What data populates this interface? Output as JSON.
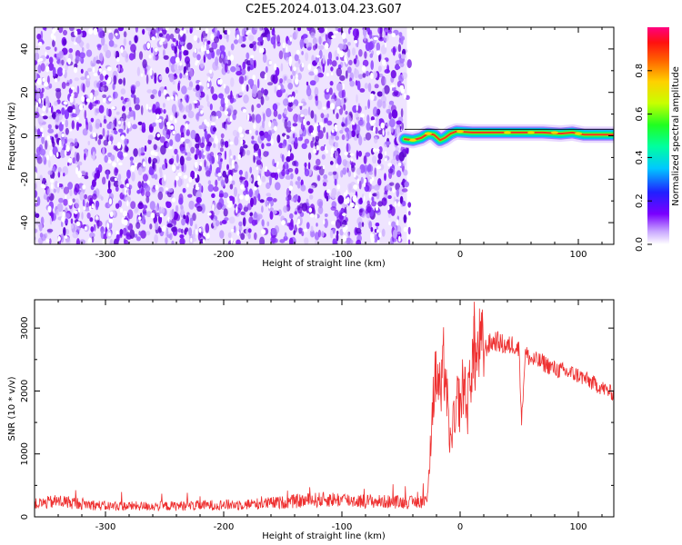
{
  "title": "C2E5.2024.013.04.23.G07",
  "chart_data": [
    {
      "type": "heatmap",
      "xlabel": "Height of straight line (km)",
      "ylabel": "Frequency (Hz)",
      "xlim": [
        -360,
        130
      ],
      "ylim": [
        -50,
        50
      ],
      "xticks": [
        -300,
        -200,
        -100,
        0,
        100
      ],
      "yticks": [
        -40,
        -20,
        0,
        20,
        40
      ],
      "noise_region_x": [
        -360,
        -45
      ],
      "signal_trace": {
        "x": [
          -47,
          -40,
          -33,
          -27,
          -22,
          -17,
          -13,
          -8,
          -3,
          10,
          30,
          50,
          70,
          85,
          95,
          105,
          115,
          130
        ],
        "y": [
          -1.5,
          -2.0,
          -1.0,
          1.0,
          0.5,
          -2.0,
          -1.0,
          1.0,
          2.0,
          1.5,
          1.5,
          1.5,
          1.5,
          1.0,
          1.5,
          0.5,
          0.5,
          0.5
        ]
      },
      "colorbar": {
        "label": "Normalized spectral amplitude",
        "range": [
          0,
          1
        ],
        "ticks": [
          0.0,
          0.2,
          0.4,
          0.6,
          0.8
        ]
      },
      "grid": false
    },
    {
      "type": "line",
      "xlabel": "Height of straight line (km)",
      "ylabel": "SNR (10 * v/v)",
      "xlim": [
        -360,
        130
      ],
      "ylim": [
        0,
        3450
      ],
      "xticks": [
        -300,
        -200,
        -100,
        0,
        100
      ],
      "yticks": [
        0,
        1000,
        2000,
        3000
      ],
      "series": [
        {
          "color": "#ee3030",
          "x": [
            -360,
            -340,
            -300,
            -250,
            -200,
            -180,
            -150,
            -130,
            -110,
            -100,
            -80,
            -60,
            -40,
            -28,
            -26,
            -24,
            -22,
            -20,
            -18,
            -16,
            -14,
            -12,
            -10,
            -8,
            -6,
            -4,
            -2,
            0,
            2,
            4,
            6,
            8,
            10,
            12,
            14,
            16,
            20,
            25,
            30,
            35,
            40,
            45,
            50,
            52,
            55,
            60,
            70,
            80,
            90,
            100,
            110,
            120,
            130
          ],
          "y": [
            200,
            250,
            170,
            170,
            190,
            200,
            230,
            260,
            280,
            270,
            250,
            240,
            230,
            260,
            700,
            1650,
            2050,
            2250,
            2100,
            1900,
            2450,
            2200,
            1500,
            1100,
            1600,
            1300,
            2000,
            1700,
            2050,
            2150,
            1600,
            2200,
            2450,
            2600,
            2450,
            2700,
            2650,
            2750,
            2800,
            2750,
            2700,
            2750,
            2650,
            1500,
            2600,
            2500,
            2450,
            2350,
            2300,
            2250,
            2150,
            2050,
            1950
          ]
        }
      ],
      "grid": false
    }
  ]
}
